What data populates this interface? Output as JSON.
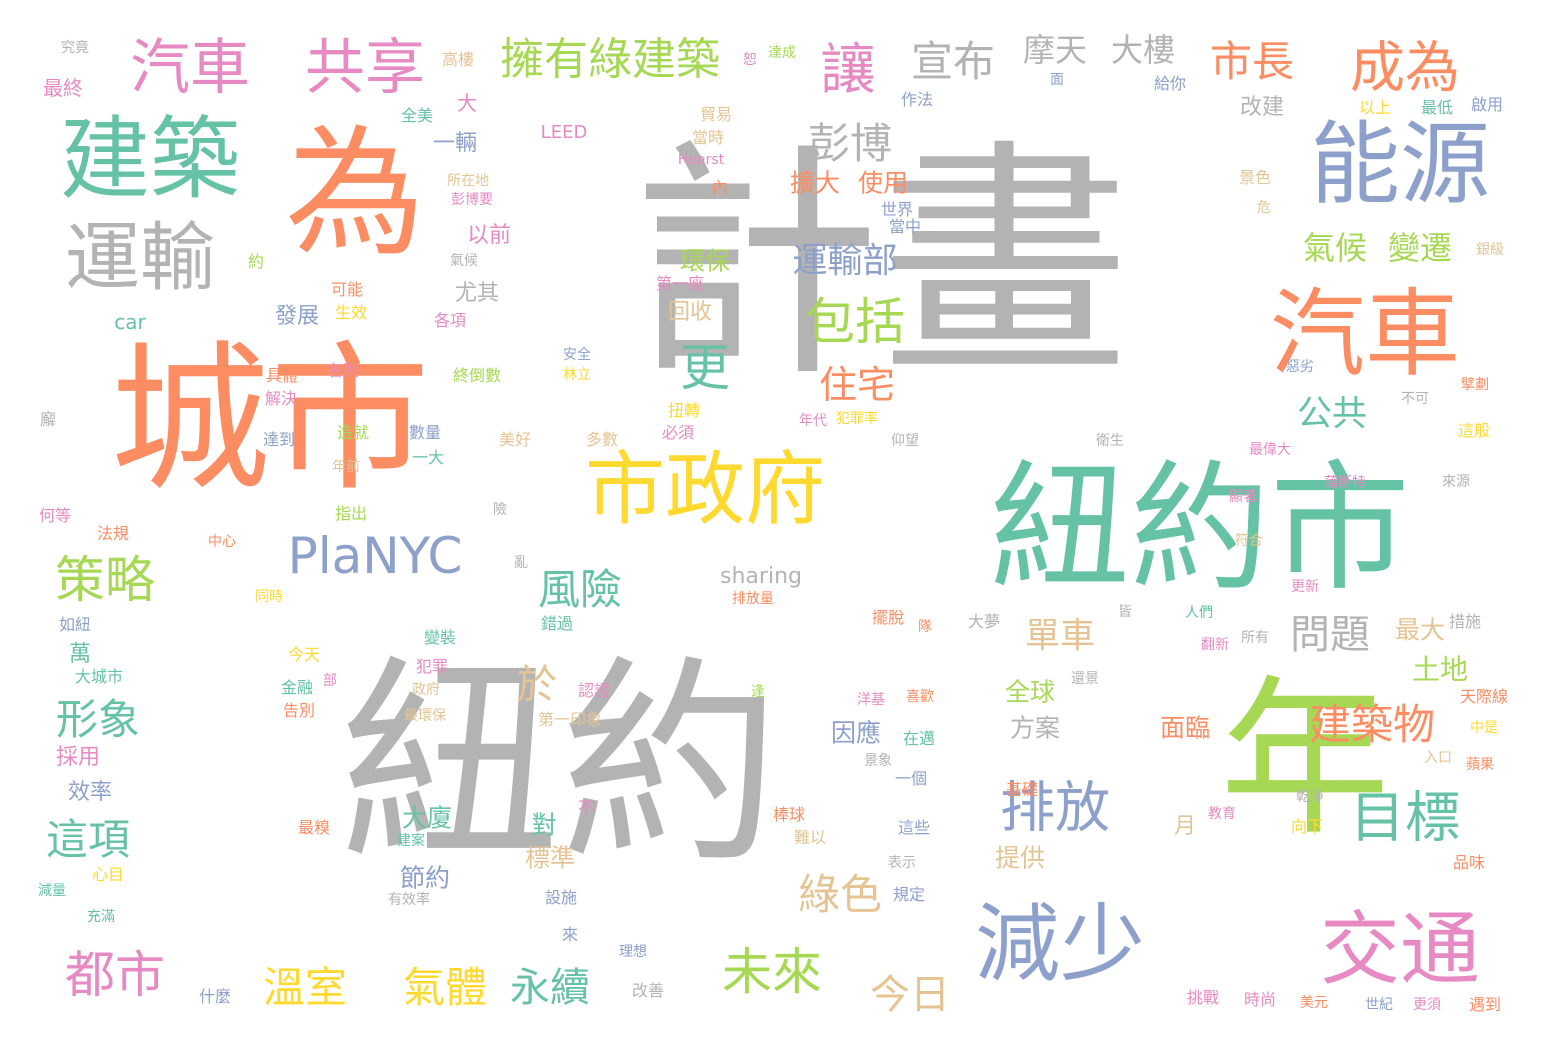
{
  "palette": {
    "gray": "#b3b3b3",
    "green": "#66c2a5",
    "orange": "#fc8d62",
    "blue": "#8da0cb",
    "pink": "#e78ac3",
    "lime": "#a6d854",
    "yellow": "#ffd92f",
    "tan": "#e5c494"
  },
  "words": [
    {
      "text": "計畫",
      "color": "gray"
    },
    {
      "text": "紐約",
      "color": "gray"
    },
    {
      "text": "紐約市",
      "color": "green"
    },
    {
      "text": "城市",
      "color": "orange"
    },
    {
      "text": "年",
      "color": "lime"
    },
    {
      "text": "為",
      "color": "orange"
    },
    {
      "text": "建築",
      "color": "green"
    },
    {
      "text": "運輸",
      "color": "gray"
    },
    {
      "text": "能源",
      "color": "blue"
    },
    {
      "text": "汽車",
      "color": "orange"
    },
    {
      "text": "市政府",
      "color": "yellow"
    },
    {
      "text": "減少",
      "color": "blue"
    },
    {
      "text": "交通",
      "color": "pink"
    },
    {
      "text": "汽車",
      "color": "pink"
    },
    {
      "text": "共享",
      "color": "pink"
    },
    {
      "text": "擁有綠建築",
      "color": "lime"
    },
    {
      "text": "讓",
      "color": "pink"
    },
    {
      "text": "宣布",
      "color": "gray"
    },
    {
      "text": "摩天",
      "color": "gray"
    },
    {
      "text": "大樓",
      "color": "gray"
    },
    {
      "text": "市長",
      "color": "orange"
    },
    {
      "text": "成為",
      "color": "orange"
    },
    {
      "text": "PlaNYC",
      "color": "blue"
    },
    {
      "text": "策略",
      "color": "lime"
    },
    {
      "text": "包括",
      "color": "lime"
    },
    {
      "text": "彭博",
      "color": "gray"
    },
    {
      "text": "更",
      "color": "green"
    },
    {
      "text": "住宅",
      "color": "orange"
    },
    {
      "text": "運輸部",
      "color": "blue"
    },
    {
      "text": "氣候",
      "color": "lime"
    },
    {
      "text": "變遷",
      "color": "lime"
    },
    {
      "text": "公共",
      "color": "green"
    },
    {
      "text": "目標",
      "color": "green"
    },
    {
      "text": "排放",
      "color": "blue"
    },
    {
      "text": "風險",
      "color": "green"
    },
    {
      "text": "問題",
      "color": "gray"
    },
    {
      "text": "單車",
      "color": "tan"
    },
    {
      "text": "建築物",
      "color": "orange"
    },
    {
      "text": "形象",
      "color": "green"
    },
    {
      "text": "這項",
      "color": "green"
    },
    {
      "text": "都市",
      "color": "pink"
    },
    {
      "text": "溫室",
      "color": "yellow"
    },
    {
      "text": "氣體",
      "color": "yellow"
    },
    {
      "text": "永續",
      "color": "green"
    },
    {
      "text": "未來",
      "color": "lime"
    },
    {
      "text": "今日",
      "color": "tan"
    },
    {
      "text": "綠色",
      "color": "tan"
    },
    {
      "text": "於",
      "color": "tan"
    },
    {
      "text": "sharing",
      "color": "gray"
    },
    {
      "text": "全球",
      "color": "lime"
    },
    {
      "text": "方案",
      "color": "gray"
    },
    {
      "text": "土地",
      "color": "lime"
    },
    {
      "text": "最大",
      "color": "tan"
    },
    {
      "text": "面臨",
      "color": "orange"
    },
    {
      "text": "因應",
      "color": "blue"
    },
    {
      "text": "大廈",
      "color": "green"
    },
    {
      "text": "節約",
      "color": "blue"
    },
    {
      "text": "標準",
      "color": "tan"
    },
    {
      "text": "對",
      "color": "green"
    },
    {
      "text": "提供",
      "color": "tan"
    },
    {
      "text": "擴大",
      "color": "orange"
    },
    {
      "text": "使用",
      "color": "orange"
    },
    {
      "text": "環保",
      "color": "lime"
    },
    {
      "text": "以前",
      "color": "pink"
    },
    {
      "text": "尤其",
      "color": "gray"
    },
    {
      "text": "發展",
      "color": "blue"
    },
    {
      "text": "回收",
      "color": "tan"
    },
    {
      "text": "改建",
      "color": "gray"
    },
    {
      "text": "一輛",
      "color": "blue"
    },
    {
      "text": "LEED",
      "color": "pink"
    },
    {
      "text": "Hearst",
      "color": "pink"
    },
    {
      "text": "car",
      "color": "green"
    },
    {
      "text": "效率",
      "color": "blue"
    },
    {
      "text": "採用",
      "color": "pink"
    },
    {
      "text": "萬",
      "color": "green"
    },
    {
      "text": "大城市",
      "color": "green"
    },
    {
      "text": "如紐",
      "color": "blue"
    },
    {
      "text": "究竟",
      "color": "gray"
    },
    {
      "text": "最終",
      "color": "pink"
    },
    {
      "text": "高樓",
      "color": "tan"
    },
    {
      "text": "大",
      "color": "pink"
    },
    {
      "text": "全美",
      "color": "green"
    },
    {
      "text": "貿易",
      "color": "tan"
    },
    {
      "text": "當時",
      "color": "tan"
    },
    {
      "text": "作法",
      "color": "blue"
    },
    {
      "text": "給你",
      "color": "blue"
    },
    {
      "text": "以上",
      "color": "yellow"
    },
    {
      "text": "最低",
      "color": "green"
    },
    {
      "text": "啟用",
      "color": "blue"
    },
    {
      "text": "景色",
      "color": "tan"
    },
    {
      "text": "世界",
      "color": "blue"
    },
    {
      "text": "當中",
      "color": "blue"
    },
    {
      "text": "銀級",
      "color": "tan"
    },
    {
      "text": "彭博要",
      "color": "pink"
    },
    {
      "text": "所在地",
      "color": "tan"
    },
    {
      "text": "氣候",
      "color": "gray"
    },
    {
      "text": "第一座",
      "color": "pink"
    },
    {
      "text": "生效",
      "color": "yellow"
    },
    {
      "text": "可能",
      "color": "orange"
    },
    {
      "text": "各項",
      "color": "pink"
    },
    {
      "text": "安全",
      "color": "blue"
    },
    {
      "text": "林立",
      "color": "yellow"
    },
    {
      "text": "具體",
      "color": "orange"
    },
    {
      "text": "解決",
      "color": "pink"
    },
    {
      "text": "名列",
      "color": "pink"
    },
    {
      "text": "終倒數",
      "color": "lime"
    },
    {
      "text": "扭轉",
      "color": "yellow"
    },
    {
      "text": "必須",
      "color": "pink"
    },
    {
      "text": "年代",
      "color": "pink"
    },
    {
      "text": "犯罪率",
      "color": "yellow"
    },
    {
      "text": "惡劣",
      "color": "blue"
    },
    {
      "text": "不可",
      "color": "gray"
    },
    {
      "text": "擘劃",
      "color": "orange"
    },
    {
      "text": "這般",
      "color": "yellow"
    },
    {
      "text": "達到",
      "color": "blue"
    },
    {
      "text": "造就",
      "color": "lime"
    },
    {
      "text": "數量",
      "color": "blue"
    },
    {
      "text": "一大",
      "color": "green"
    },
    {
      "text": "美好",
      "color": "tan"
    },
    {
      "text": "多數",
      "color": "tan"
    },
    {
      "text": "仰望",
      "color": "gray"
    },
    {
      "text": "衛生",
      "color": "gray"
    },
    {
      "text": "最偉大",
      "color": "pink"
    },
    {
      "text": "顯著",
      "color": "pink"
    },
    {
      "text": "蒲斯特",
      "color": "pink"
    },
    {
      "text": "來源",
      "color": "gray"
    },
    {
      "text": "年前",
      "color": "tan"
    },
    {
      "text": "何等",
      "color": "pink"
    },
    {
      "text": "法規",
      "color": "orange"
    },
    {
      "text": "指出",
      "color": "lime"
    },
    {
      "text": "中心",
      "color": "orange"
    },
    {
      "text": "險",
      "color": "gray"
    },
    {
      "text": "亂",
      "color": "gray"
    },
    {
      "text": "同時",
      "color": "yellow"
    },
    {
      "text": "排放量",
      "color": "orange"
    },
    {
      "text": "擺脫",
      "color": "orange"
    },
    {
      "text": "皆",
      "color": "gray"
    },
    {
      "text": "隊",
      "color": "orange"
    },
    {
      "text": "大夢",
      "color": "gray"
    },
    {
      "text": "人們",
      "color": "green"
    },
    {
      "text": "更新",
      "color": "pink"
    },
    {
      "text": "符合",
      "color": "tan"
    },
    {
      "text": "措施",
      "color": "gray"
    },
    {
      "text": "錯過",
      "color": "green"
    },
    {
      "text": "翻新",
      "color": "pink"
    },
    {
      "text": "所有",
      "color": "gray"
    },
    {
      "text": "今天",
      "color": "yellow"
    },
    {
      "text": "變裝",
      "color": "green"
    },
    {
      "text": "犯罪",
      "color": "pink"
    },
    {
      "text": "認證",
      "color": "pink"
    },
    {
      "text": "政府",
      "color": "tan"
    },
    {
      "text": "最環保",
      "color": "tan"
    },
    {
      "text": "金融",
      "color": "green"
    },
    {
      "text": "部",
      "color": "pink"
    },
    {
      "text": "告別",
      "color": "orange"
    },
    {
      "text": "第一印象",
      "color": "tan"
    },
    {
      "text": "逢",
      "color": "lime"
    },
    {
      "text": "洋基",
      "color": "pink"
    },
    {
      "text": "喜歡",
      "color": "orange"
    },
    {
      "text": "在邁",
      "color": "green"
    },
    {
      "text": "還景",
      "color": "gray"
    },
    {
      "text": "天際線",
      "color": "orange"
    },
    {
      "text": "中是",
      "color": "yellow"
    },
    {
      "text": "入口",
      "color": "tan"
    },
    {
      "text": "蘋果",
      "color": "orange"
    },
    {
      "text": "基礎",
      "color": "orange"
    },
    {
      "text": "景象",
      "color": "gray"
    },
    {
      "text": "一個",
      "color": "blue"
    },
    {
      "text": "乾淨",
      "color": "gray"
    },
    {
      "text": "教育",
      "color": "pink"
    },
    {
      "text": "向下",
      "color": "yellow"
    },
    {
      "text": "棒球",
      "color": "orange"
    },
    {
      "text": "難以",
      "color": "tan"
    },
    {
      "text": "這些",
      "color": "blue"
    },
    {
      "text": "月",
      "color": "tan"
    },
    {
      "text": "不",
      "color": "pink"
    },
    {
      "text": "最糗",
      "color": "orange"
    },
    {
      "text": "建案",
      "color": "green"
    },
    {
      "text": "心目",
      "color": "yellow"
    },
    {
      "text": "減量",
      "color": "green"
    },
    {
      "text": "充滿",
      "color": "green"
    },
    {
      "text": "有效率",
      "color": "gray"
    },
    {
      "text": "設施",
      "color": "blue"
    },
    {
      "text": "表示",
      "color": "gray"
    },
    {
      "text": "規定",
      "color": "blue"
    },
    {
      "text": "品味",
      "color": "orange"
    },
    {
      "text": "來",
      "color": "blue"
    },
    {
      "text": "理想",
      "color": "blue"
    },
    {
      "text": "什麼",
      "color": "blue"
    },
    {
      "text": "改善",
      "color": "gray"
    },
    {
      "text": "挑戰",
      "color": "pink"
    },
    {
      "text": "時尚",
      "color": "pink"
    },
    {
      "text": "美元",
      "color": "orange"
    },
    {
      "text": "世紀",
      "color": "blue"
    },
    {
      "text": "更須",
      "color": "pink"
    },
    {
      "text": "遇到",
      "color": "orange"
    },
    {
      "text": "內",
      "color": "orange"
    },
    {
      "text": "危",
      "color": "tan"
    },
    {
      "text": "約",
      "color": "lime"
    },
    {
      "text": "廨",
      "color": "gray"
    },
    {
      "text": "恕",
      "color": "pink"
    },
    {
      "text": "達成",
      "color": "lime"
    },
    {
      "text": "面",
      "color": "blue"
    }
  ]
}
